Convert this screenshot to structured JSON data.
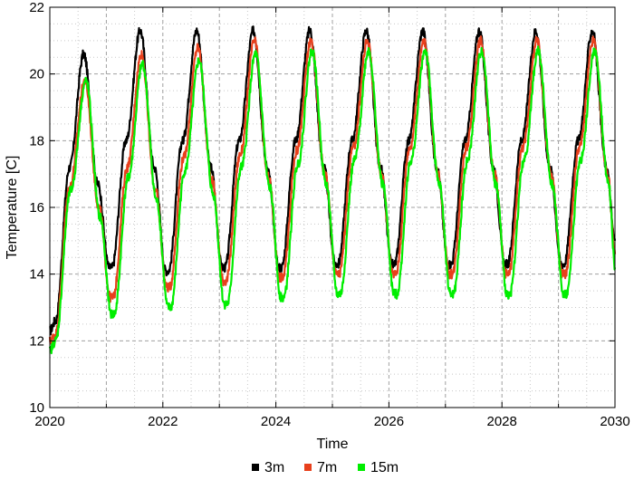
{
  "chart_data": {
    "type": "line",
    "title": "",
    "xlabel": "Time",
    "ylabel": "Temperature [C]",
    "xlim": [
      2020,
      2030
    ],
    "ylim": [
      10,
      22
    ],
    "x_major_ticks": [
      2020,
      2022,
      2024,
      2026,
      2028,
      2030
    ],
    "x_minor_ticks": [
      2021,
      2023,
      2025,
      2027,
      2029
    ],
    "y_major_ticks": [
      10,
      12,
      14,
      16,
      18,
      20,
      22
    ],
    "x_tick_labels": [
      "2020",
      "2022",
      "2024",
      "2026",
      "2028",
      "2030"
    ],
    "y_tick_labels": [
      "10",
      "12",
      "14",
      "16",
      "18",
      "20",
      "22"
    ],
    "grid": true,
    "legend": "bottom-center",
    "series": [
      {
        "name": "3m",
        "color": "#000000",
        "x": [
          2020.0,
          2020.1,
          2020.35,
          2020.6,
          2020.85,
          2021.05,
          2021.1,
          2021.35,
          2021.6,
          2021.85,
          2022.05,
          2022.1,
          2022.35,
          2022.6,
          2022.85,
          2023.05,
          2023.1,
          2023.35,
          2023.6,
          2023.85,
          2024.05,
          2024.1,
          2024.35,
          2024.6,
          2024.85,
          2025.05,
          2025.1,
          2025.35,
          2025.6,
          2025.85,
          2026.05,
          2026.1,
          2026.35,
          2026.6,
          2026.85,
          2027.05,
          2027.1,
          2027.35,
          2027.6,
          2027.85,
          2028.05,
          2028.1,
          2028.35,
          2028.6,
          2028.85,
          2029.05,
          2029.1,
          2029.35,
          2029.6,
          2029.85,
          2030.0
        ],
        "y": [
          12.3,
          12.6,
          17.2,
          20.6,
          16.7,
          14.2,
          14.2,
          18.0,
          21.3,
          17.2,
          14.1,
          14.1,
          18.0,
          21.3,
          17.2,
          14.2,
          14.2,
          18.0,
          21.3,
          17.2,
          14.2,
          14.2,
          18.0,
          21.3,
          17.2,
          14.3,
          14.3,
          18.0,
          21.3,
          17.2,
          14.3,
          14.3,
          18.0,
          21.3,
          17.2,
          14.3,
          14.3,
          18.0,
          21.3,
          17.2,
          14.3,
          14.3,
          18.0,
          21.3,
          17.2,
          14.3,
          14.3,
          18.0,
          21.3,
          17.2,
          15.0
        ]
      },
      {
        "name": "7m",
        "color": "#e8401c",
        "x": [
          2020.0,
          2020.1,
          2020.35,
          2020.62,
          2020.87,
          2021.07,
          2021.12,
          2021.37,
          2021.62,
          2021.87,
          2022.07,
          2022.12,
          2022.37,
          2022.62,
          2022.87,
          2023.07,
          2023.12,
          2023.37,
          2023.62,
          2023.87,
          2024.07,
          2024.12,
          2024.37,
          2024.62,
          2024.87,
          2025.07,
          2025.12,
          2025.37,
          2025.62,
          2025.87,
          2026.07,
          2026.12,
          2026.37,
          2026.62,
          2026.87,
          2027.07,
          2027.12,
          2027.37,
          2027.62,
          2027.87,
          2028.07,
          2028.12,
          2028.37,
          2028.62,
          2028.87,
          2029.07,
          2029.12,
          2029.37,
          2029.62,
          2029.87,
          2030.0
        ],
        "y": [
          12.0,
          12.2,
          16.6,
          19.8,
          16.0,
          13.3,
          13.3,
          17.2,
          20.6,
          16.5,
          13.6,
          13.6,
          17.5,
          20.8,
          16.8,
          13.8,
          13.8,
          17.6,
          21.0,
          16.9,
          13.9,
          13.9,
          17.7,
          21.0,
          17.0,
          14.0,
          14.0,
          17.8,
          21.0,
          17.0,
          14.0,
          14.0,
          17.8,
          21.0,
          17.0,
          14.0,
          14.0,
          17.8,
          21.0,
          17.0,
          14.0,
          14.0,
          17.8,
          21.0,
          17.0,
          14.0,
          14.0,
          17.8,
          21.0,
          17.0,
          14.6
        ]
      },
      {
        "name": "15m",
        "color": "#00ee00",
        "x": [
          2020.0,
          2020.1,
          2020.37,
          2020.64,
          2020.89,
          2021.09,
          2021.14,
          2021.39,
          2021.64,
          2021.89,
          2022.09,
          2022.14,
          2022.39,
          2022.64,
          2022.89,
          2023.09,
          2023.14,
          2023.39,
          2023.64,
          2023.89,
          2024.09,
          2024.14,
          2024.39,
          2024.64,
          2024.89,
          2025.09,
          2025.14,
          2025.39,
          2025.64,
          2025.89,
          2026.09,
          2026.14,
          2026.39,
          2026.64,
          2026.89,
          2027.09,
          2027.14,
          2027.39,
          2027.64,
          2027.89,
          2028.09,
          2028.14,
          2028.39,
          2028.64,
          2028.89,
          2029.09,
          2029.14,
          2029.39,
          2029.64,
          2029.89,
          2030.0
        ],
        "y": [
          11.7,
          12.0,
          16.5,
          19.8,
          15.7,
          12.8,
          12.8,
          16.9,
          20.3,
          16.2,
          13.0,
          13.0,
          17.1,
          20.4,
          16.4,
          13.1,
          13.1,
          17.2,
          20.6,
          16.6,
          13.3,
          13.3,
          17.3,
          20.7,
          16.7,
          13.4,
          13.4,
          17.4,
          20.7,
          16.7,
          13.4,
          13.4,
          17.4,
          20.7,
          16.7,
          13.4,
          13.4,
          17.4,
          20.7,
          16.7,
          13.4,
          13.4,
          17.4,
          20.7,
          16.7,
          13.4,
          13.4,
          17.4,
          20.7,
          16.7,
          14.2
        ]
      }
    ]
  }
}
